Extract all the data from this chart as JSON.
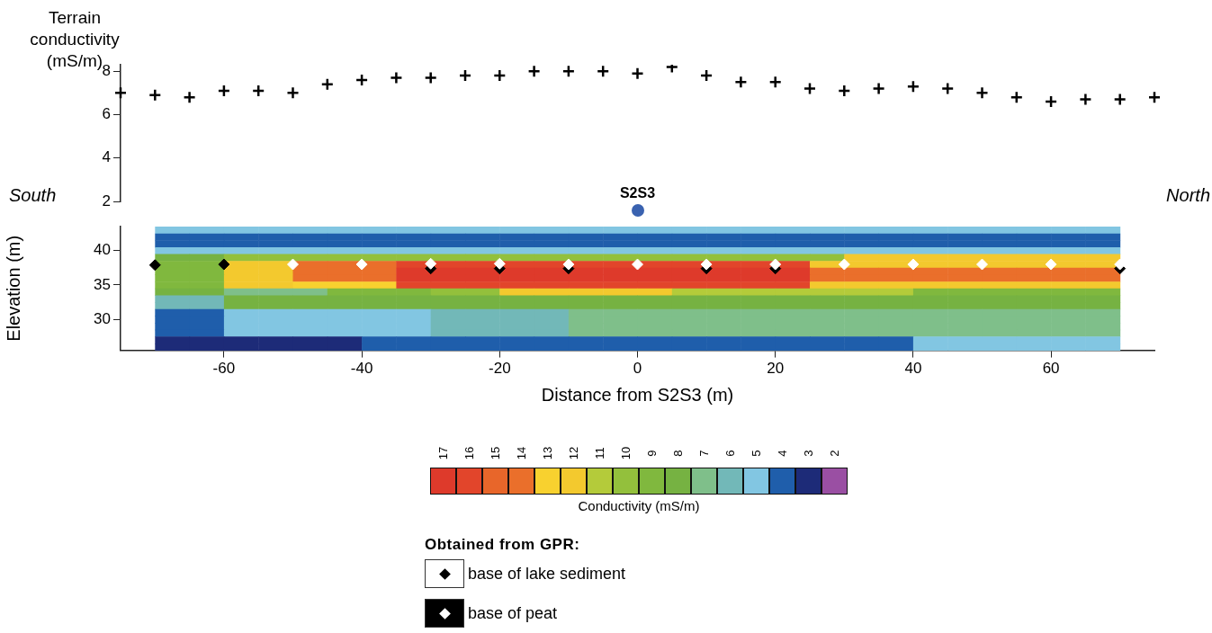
{
  "chart_data": [
    {
      "type": "scatter",
      "ylabel": "Terrain conductivity (mS/m)",
      "x": [
        -75,
        -70,
        -65,
        -60,
        -55,
        -50,
        -45,
        -40,
        -35,
        -30,
        -25,
        -20,
        -15,
        -10,
        -5,
        0,
        5,
        10,
        15,
        20,
        25,
        30,
        35,
        40,
        45,
        50,
        55,
        60,
        65,
        70,
        75
      ],
      "values": [
        7.0,
        6.9,
        6.8,
        7.1,
        7.1,
        7.0,
        7.4,
        7.6,
        7.7,
        7.7,
        7.8,
        7.8,
        8.0,
        8.0,
        8.0,
        7.9,
        8.2,
        7.8,
        7.5,
        7.5,
        7.2,
        7.1,
        7.2,
        7.3,
        7.2,
        7.0,
        6.8,
        6.6,
        6.7,
        6.7,
        6.8
      ],
      "color": "#000000",
      "marker": "cross",
      "ylim": [
        2,
        8.3
      ],
      "yticks": [
        2,
        4,
        6,
        8
      ],
      "tick_labels": "y",
      "annotations": [
        "South",
        "North",
        "S2S3"
      ]
    },
    {
      "type": "heatmap",
      "xlabel": "Distance from S2S3 (m)",
      "ylabel": "Elevation (m)",
      "clabel": "Conductivity (mS/m)",
      "legend_title": "Obtained from GPR:",
      "legend": "bottom",
      "xlim": [
        -75,
        75
      ],
      "xticks": [
        -60,
        -40,
        -20,
        0,
        20,
        40,
        60
      ],
      "ylim": [
        25.5,
        43.5
      ],
      "yticks": [
        30,
        35,
        40
      ],
      "x": [
        -67.5,
        -62.5,
        -57.5,
        -52.5,
        -47.5,
        -42.5,
        -37.5,
        -32.5,
        -27.5,
        -22.5,
        -17.5,
        -12.5,
        -7.5,
        -2.5,
        2.5,
        7.5,
        12.5,
        17.5,
        22.5,
        27.5,
        32.5,
        37.5,
        42.5,
        47.5,
        52.5,
        57.5,
        62.5,
        67.5
      ],
      "clim": [
        17.5,
        1.5
      ],
      "cticks": [
        17,
        16,
        15,
        14,
        13,
        12,
        11,
        10,
        9,
        8,
        7,
        6,
        5,
        4,
        3,
        2
      ],
      "colors": [
        "#de3a2b",
        "#e2452b",
        "#e8662a",
        "#ea6f2b",
        "#f8d12f",
        "#f3c92e",
        "#b4cb3a",
        "#93c03c",
        "#80b83e",
        "#76b242",
        "#7fbf8a",
        "#72b8b8",
        "#82c6e2",
        "#1f5eab",
        "#1d2b78",
        "#9a4fa3"
      ],
      "cells": [
        [
          5,
          5,
          5,
          5,
          5,
          5,
          5,
          5,
          5,
          5,
          5,
          5,
          5,
          5,
          5,
          5,
          5,
          5,
          5,
          5,
          5,
          5,
          5,
          5,
          5,
          5,
          5,
          5
        ],
        [
          4,
          4,
          4,
          4,
          4,
          4,
          4,
          4,
          4,
          4,
          4,
          4,
          4,
          4,
          4,
          4,
          4,
          4,
          4,
          4,
          4,
          4,
          4,
          4,
          4,
          4,
          4,
          4
        ],
        [
          4,
          4,
          4,
          4,
          4,
          4,
          4,
          4,
          4,
          4,
          4,
          4,
          4,
          4,
          4,
          4,
          4,
          4,
          4,
          4,
          4,
          4,
          4,
          4,
          4,
          4,
          4,
          4
        ],
        [
          5,
          5,
          5,
          5,
          5,
          5,
          5,
          5,
          5,
          5,
          5,
          5,
          5,
          5,
          5,
          5,
          5,
          5,
          5,
          5,
          5,
          5,
          5,
          5,
          5,
          5,
          5,
          5
        ],
        [
          8,
          8,
          10,
          10,
          10,
          10,
          10,
          10,
          10,
          10,
          10,
          10,
          10,
          10,
          10,
          10,
          10,
          10,
          10,
          10,
          12,
          12,
          12,
          12,
          12,
          12,
          12,
          12
        ],
        [
          9,
          9,
          12,
          12,
          14,
          14,
          14,
          16,
          16,
          16,
          16,
          16,
          16,
          16,
          16,
          16,
          16,
          16,
          16,
          12,
          12,
          12,
          12,
          12,
          12,
          12,
          12,
          12
        ],
        [
          9,
          9,
          12,
          12,
          14,
          14,
          14,
          17,
          17,
          17,
          17,
          17,
          17,
          17,
          17,
          17,
          17,
          17,
          17,
          14,
          14,
          14,
          14,
          14,
          14,
          14,
          14,
          14
        ],
        [
          9,
          9,
          12,
          12,
          14,
          14,
          14,
          17,
          17,
          17,
          17,
          17,
          17,
          17,
          17,
          17,
          17,
          17,
          17,
          14,
          14,
          14,
          14,
          14,
          14,
          14,
          14,
          14
        ],
        [
          9,
          9,
          12,
          12,
          13,
          13,
          13,
          16,
          16,
          16,
          16,
          16,
          16,
          16,
          16,
          16,
          16,
          16,
          16,
          12,
          12,
          12,
          12,
          12,
          12,
          12,
          12,
          12
        ],
        [
          8,
          8,
          7,
          7,
          7,
          9,
          9,
          9,
          10,
          10,
          12,
          12,
          12,
          12,
          12,
          11,
          11,
          11,
          11,
          11,
          11,
          11,
          9,
          9,
          9,
          9,
          9,
          9
        ],
        [
          6,
          6,
          8,
          8,
          8,
          8,
          8,
          8,
          8,
          8,
          8,
          8,
          8,
          8,
          8,
          8,
          8,
          8,
          8,
          8,
          8,
          8,
          8,
          8,
          8,
          8,
          8,
          8
        ],
        [
          6,
          6,
          8,
          8,
          8,
          8,
          8,
          8,
          8,
          8,
          8,
          8,
          8,
          8,
          8,
          8,
          8,
          8,
          8,
          8,
          8,
          8,
          8,
          8,
          8,
          8,
          8,
          8
        ],
        [
          4,
          4,
          5,
          5,
          5,
          5,
          5,
          5,
          6,
          6,
          6,
          6,
          7,
          7,
          7,
          7,
          7,
          7,
          7,
          7,
          7,
          7,
          7,
          7,
          7,
          7,
          7,
          7
        ],
        [
          4,
          4,
          5,
          5,
          5,
          5,
          5,
          5,
          6,
          6,
          6,
          6,
          7,
          7,
          7,
          7,
          7,
          7,
          7,
          7,
          7,
          7,
          7,
          7,
          7,
          7,
          7,
          7
        ],
        [
          4,
          4,
          5,
          5,
          5,
          5,
          5,
          5,
          6,
          6,
          6,
          6,
          7,
          7,
          7,
          7,
          7,
          7,
          7,
          7,
          7,
          7,
          7,
          7,
          7,
          7,
          7,
          7
        ],
        [
          4,
          4,
          5,
          5,
          5,
          5,
          5,
          5,
          6,
          6,
          6,
          6,
          7,
          7,
          7,
          7,
          7,
          7,
          7,
          7,
          7,
          7,
          7,
          7,
          7,
          7,
          7,
          7
        ],
        [
          3,
          3,
          3,
          3,
          3,
          3,
          4,
          4,
          4,
          4,
          4,
          4,
          4,
          4,
          4,
          4,
          4,
          4,
          4,
          4,
          4,
          4,
          5,
          5,
          5,
          5,
          5,
          5
        ],
        [
          3,
          3,
          3,
          3,
          3,
          3,
          4,
          4,
          4,
          4,
          4,
          4,
          4,
          4,
          4,
          4,
          4,
          4,
          4,
          4,
          4,
          4,
          5,
          5,
          5,
          5,
          5,
          5
        ]
      ],
      "series": [
        {
          "name": "base of lake sediment",
          "type": "scatter",
          "marker": "diamond",
          "color": "#000000",
          "x": [
            -70,
            -60,
            -30,
            -20,
            -10,
            10,
            20,
            70
          ],
          "values": [
            37.9,
            38.0,
            37.4,
            37.4,
            37.4,
            37.4,
            37.4,
            37.4
          ]
        },
        {
          "name": "base of peat",
          "type": "scatter",
          "marker": "diamond",
          "color": "#ffffff",
          "x": [
            -50,
            -40,
            -30,
            -20,
            -10,
            0,
            10,
            20,
            30,
            40,
            50,
            60,
            70
          ],
          "values": [
            38.0,
            38.0,
            38.1,
            38.1,
            38.0,
            38.0,
            38.0,
            38.0,
            38.0,
            38.0,
            38.0,
            38.0,
            38.0
          ]
        }
      ]
    }
  ]
}
